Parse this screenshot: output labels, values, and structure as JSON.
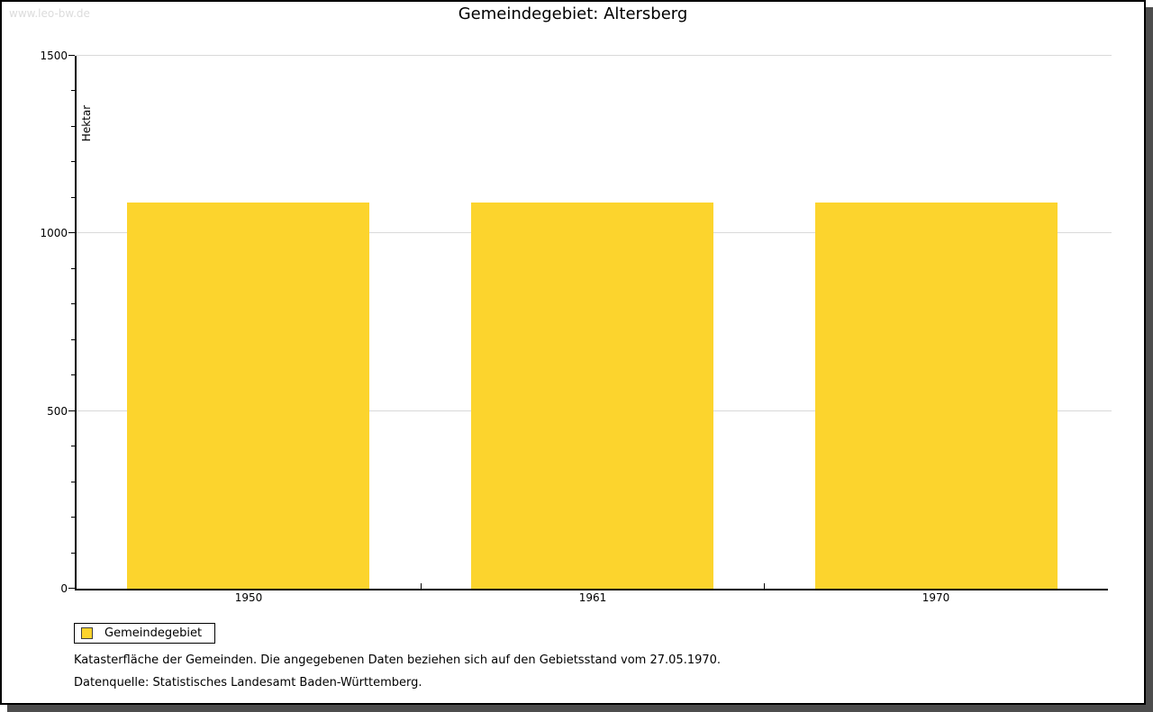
{
  "watermark": "www.leo-bw.de",
  "title": "Gemeindegebiet: Altersberg",
  "chart_data": {
    "type": "bar",
    "title": "Gemeindegebiet: Altersberg",
    "categories": [
      "1950",
      "1961",
      "1970"
    ],
    "series": [
      {
        "name": "Gemeindegebiet",
        "values": [
          1088,
          1088,
          1088
        ]
      }
    ],
    "xlabel": "",
    "ylabel": "Hektar",
    "ylim": [
      0,
      1500
    ],
    "yticks": [
      0,
      500,
      1000,
      1500
    ],
    "minor_tick_step": 100,
    "grid": true,
    "legend_position": "bottom-left",
    "bar_color": "#fcd42d"
  },
  "legend": {
    "items": [
      {
        "label": "Gemeindegebiet",
        "color": "#fcd42d"
      }
    ]
  },
  "footnotes": [
    "Katasterfläche der Gemeinden. Die angegebenen Daten beziehen sich auf den Gebietsstand vom 27.05.1970.",
    "Datenquelle: Statistisches Landesamt Baden-Württemberg."
  ],
  "colors": {
    "bar": "#fcd42d",
    "grid": "#d9d9d9",
    "axis": "#000000",
    "watermark": "#dcdcdc",
    "frame_shadow": "#4d4d4d"
  }
}
